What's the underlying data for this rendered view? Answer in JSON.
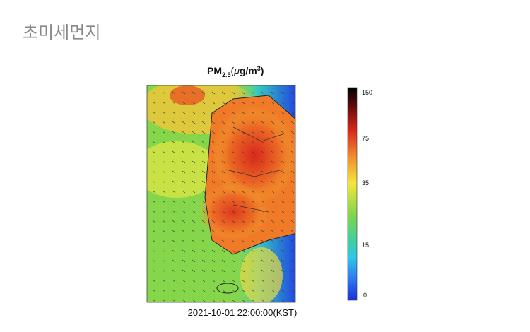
{
  "header": {
    "title": "초미세먼지"
  },
  "figure": {
    "title": {
      "main": "PM",
      "sub": "2.5",
      "open": "(",
      "mu": "μ",
      "unit": "g/m",
      "sup": "3",
      "close": ")"
    },
    "colorbar": {
      "labels": [
        "150",
        "75",
        "35",
        "15",
        "0"
      ]
    },
    "timestamp": "2021-10-01 22:00:00(KST)"
  }
}
